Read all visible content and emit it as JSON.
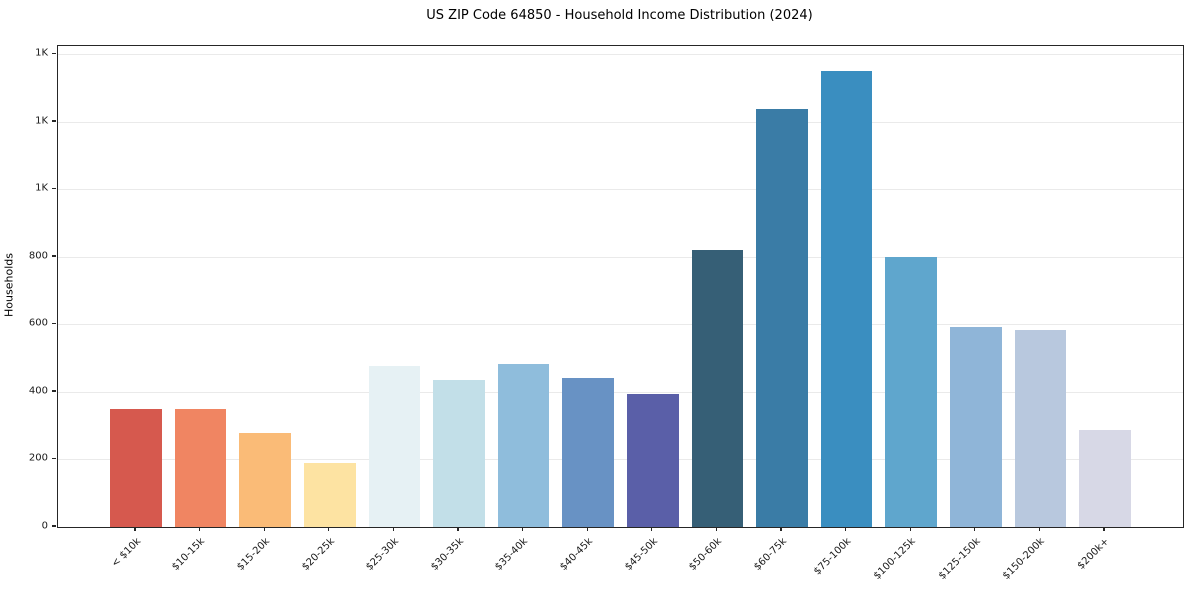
{
  "chart_data": {
    "type": "bar",
    "title": "US ZIP Code 64850 - Household Income Distribution (2024)",
    "xlabel": "",
    "ylabel": "Households",
    "categories": [
      "< $10k",
      "$10-15k",
      "$15-20k",
      "$20-25k",
      "$25-30k",
      "$30-35k",
      "$35-40k",
      "$40-45k",
      "$45-50k",
      "$50-60k",
      "$60-75k",
      "$75-100k",
      "$100-125k",
      "$125-150k",
      "$150-200k",
      "$200k+"
    ],
    "values": [
      350,
      350,
      280,
      190,
      476,
      436,
      483,
      440,
      395,
      820,
      1238,
      1352,
      800,
      592,
      583,
      286
    ],
    "bar_colors": [
      "#d6594e",
      "#f08562",
      "#fabb77",
      "#fde3a2",
      "#e6f1f4",
      "#c2dfe8",
      "#8fbddc",
      "#6892c4",
      "#5a5fa8",
      "#365f76",
      "#3a7ca6",
      "#3a8ec0",
      "#5fa6cd",
      "#8fb5d8",
      "#b8c8de",
      "#d7d8e6"
    ],
    "y_ticks": {
      "values": [
        0,
        200,
        400,
        600,
        800,
        1000,
        1200,
        1400
      ],
      "labels": [
        "0",
        "200",
        "400",
        "600",
        "800",
        "1K",
        "1K",
        "1K"
      ]
    },
    "ylim": [
      0,
      1425
    ],
    "grid": "horizontal",
    "grid_color": "#eaeaea",
    "axis_color": "#262626",
    "background_color": "#ffffff",
    "legend": "none"
  }
}
